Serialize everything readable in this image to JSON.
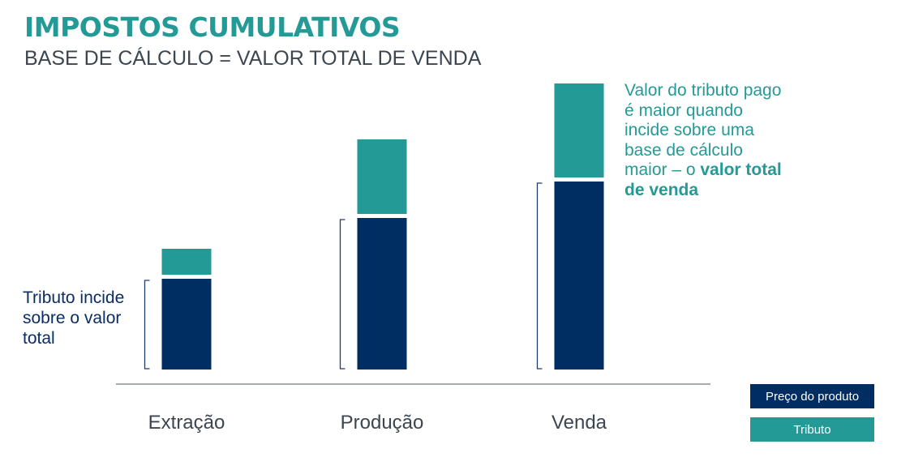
{
  "header": {
    "title": "IMPOSTOS CUMULATIVOS",
    "subtitle": "BASE DE CÁLCULO = VALOR TOTAL DE VENDA"
  },
  "annotations": {
    "left": "Tributo incide sobre o valor total",
    "right_prefix": "Valor do tributo pago é maior quando incide sobre uma base de cálculo maior – o ",
    "right_bold": "valor total de venda"
  },
  "colors": {
    "preco": "#002d62",
    "tributo": "#249a96",
    "bracket": "#1e3c6e",
    "axis": "#8a8f96",
    "label": "#3c4650"
  },
  "chart_data": {
    "type": "bar",
    "stacked": true,
    "categories": [
      "Extração",
      "Produção",
      "Venda"
    ],
    "series": [
      {
        "name": "Preço do produto",
        "values": [
          112,
          187,
          232
        ]
      },
      {
        "name": "Tributo",
        "values": [
          32,
          92,
          116
        ]
      }
    ],
    "ylim": [
      0,
      360
    ]
  },
  "legend": {
    "preco": "Preço do produto",
    "tributo": "Tributo"
  }
}
